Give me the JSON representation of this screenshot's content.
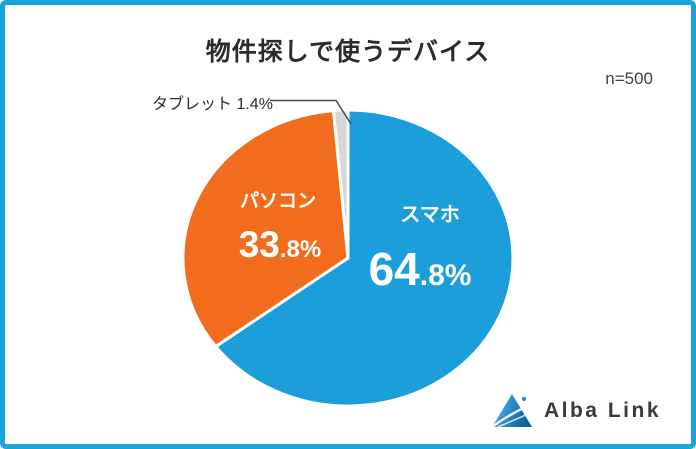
{
  "frame": {
    "border_color": "#17a5dc",
    "background": "#ffffff"
  },
  "title": "物件探しで使うデバイス",
  "sample_size": "n=500",
  "chart_data": {
    "type": "pie",
    "title": "物件探しで使うデバイス",
    "sample_size": "n=500",
    "unit": "%",
    "start_angle_deg": 0,
    "direction": "clockwise",
    "separator_color": "#ffffff",
    "slices": [
      {
        "label": "スマホ",
        "value": 64.8,
        "color": "#1b9ed9"
      },
      {
        "label": "パソコン",
        "value": 33.8,
        "color": "#f26c1d"
      },
      {
        "label": "タブレット",
        "value": 1.4,
        "color": "#d7d7d7"
      }
    ]
  },
  "slice_labels": {
    "smartphone": {
      "name": "スマホ",
      "big": "64",
      "small": ".8%"
    },
    "pc": {
      "name": "パソコン",
      "big": "33",
      "small": ".8%"
    },
    "tablet": {
      "callout": "タブレット 1.4%"
    }
  },
  "logo": {
    "text": "Alba Link"
  }
}
